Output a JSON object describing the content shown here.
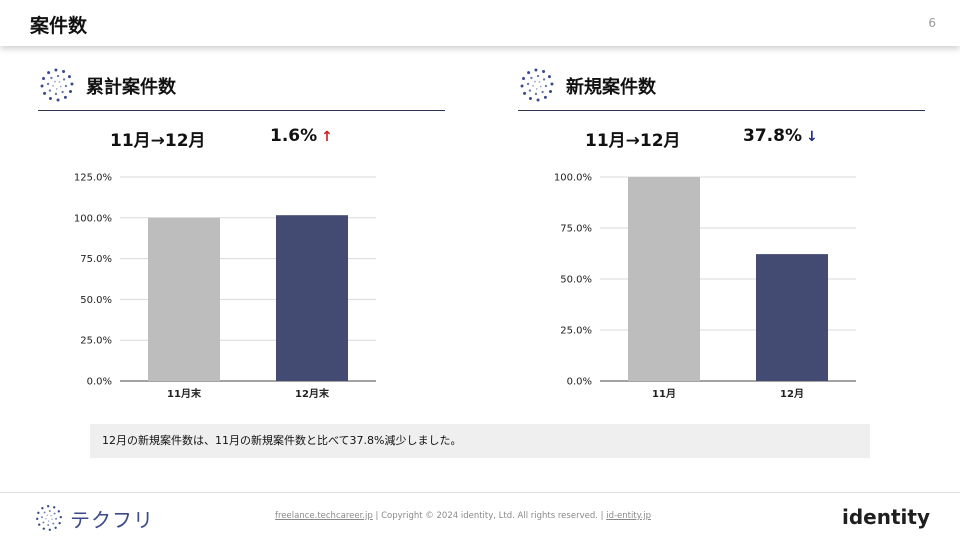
{
  "header": {
    "title": "案件数",
    "page_number": "6"
  },
  "sections": [
    {
      "title": "累計案件数",
      "period": "11月→12月",
      "change": "1.6%",
      "arrow": "↑"
    },
    {
      "title": "新規案件数",
      "period": "11月→12月",
      "change": "37.8%",
      "arrow": "↓"
    }
  ],
  "chart_data": [
    {
      "type": "bar",
      "categories": [
        "11月末",
        "12月末"
      ],
      "values": [
        100.0,
        101.6
      ],
      "ylim": [
        0,
        125
      ],
      "yticks": [
        "0.0%",
        "25.0%",
        "50.0%",
        "75.0%",
        "100.0%",
        "125.0%"
      ],
      "colors": [
        "#bdbdbd",
        "#434b73"
      ],
      "grid": true
    },
    {
      "type": "bar",
      "categories": [
        "11月",
        "12月"
      ],
      "values": [
        100.0,
        62.2
      ],
      "ylim": [
        0,
        100
      ],
      "yticks": [
        "0.0%",
        "25.0%",
        "50.0%",
        "75.0%",
        "100.0%"
      ],
      "colors": [
        "#bdbdbd",
        "#434b73"
      ],
      "grid": true
    }
  ],
  "summary": "12月の新規案件数は、11月の新規案件数と比べて37.8%減少しました。",
  "footer": {
    "brand": "テクフリ",
    "link1": "freelance.techcareer.jp",
    "sep1": " | ",
    "copyright": "Copyright © 2024 identity, Ltd. All rights reserved.",
    "sep2": " | ",
    "link2": "id-entity.jp",
    "company": "identity"
  },
  "colors": {
    "accent": "#434b73",
    "up": "#d02020",
    "down": "#1a2a8a"
  },
  "icons": [
    "dotted-circle-logo-icon"
  ]
}
